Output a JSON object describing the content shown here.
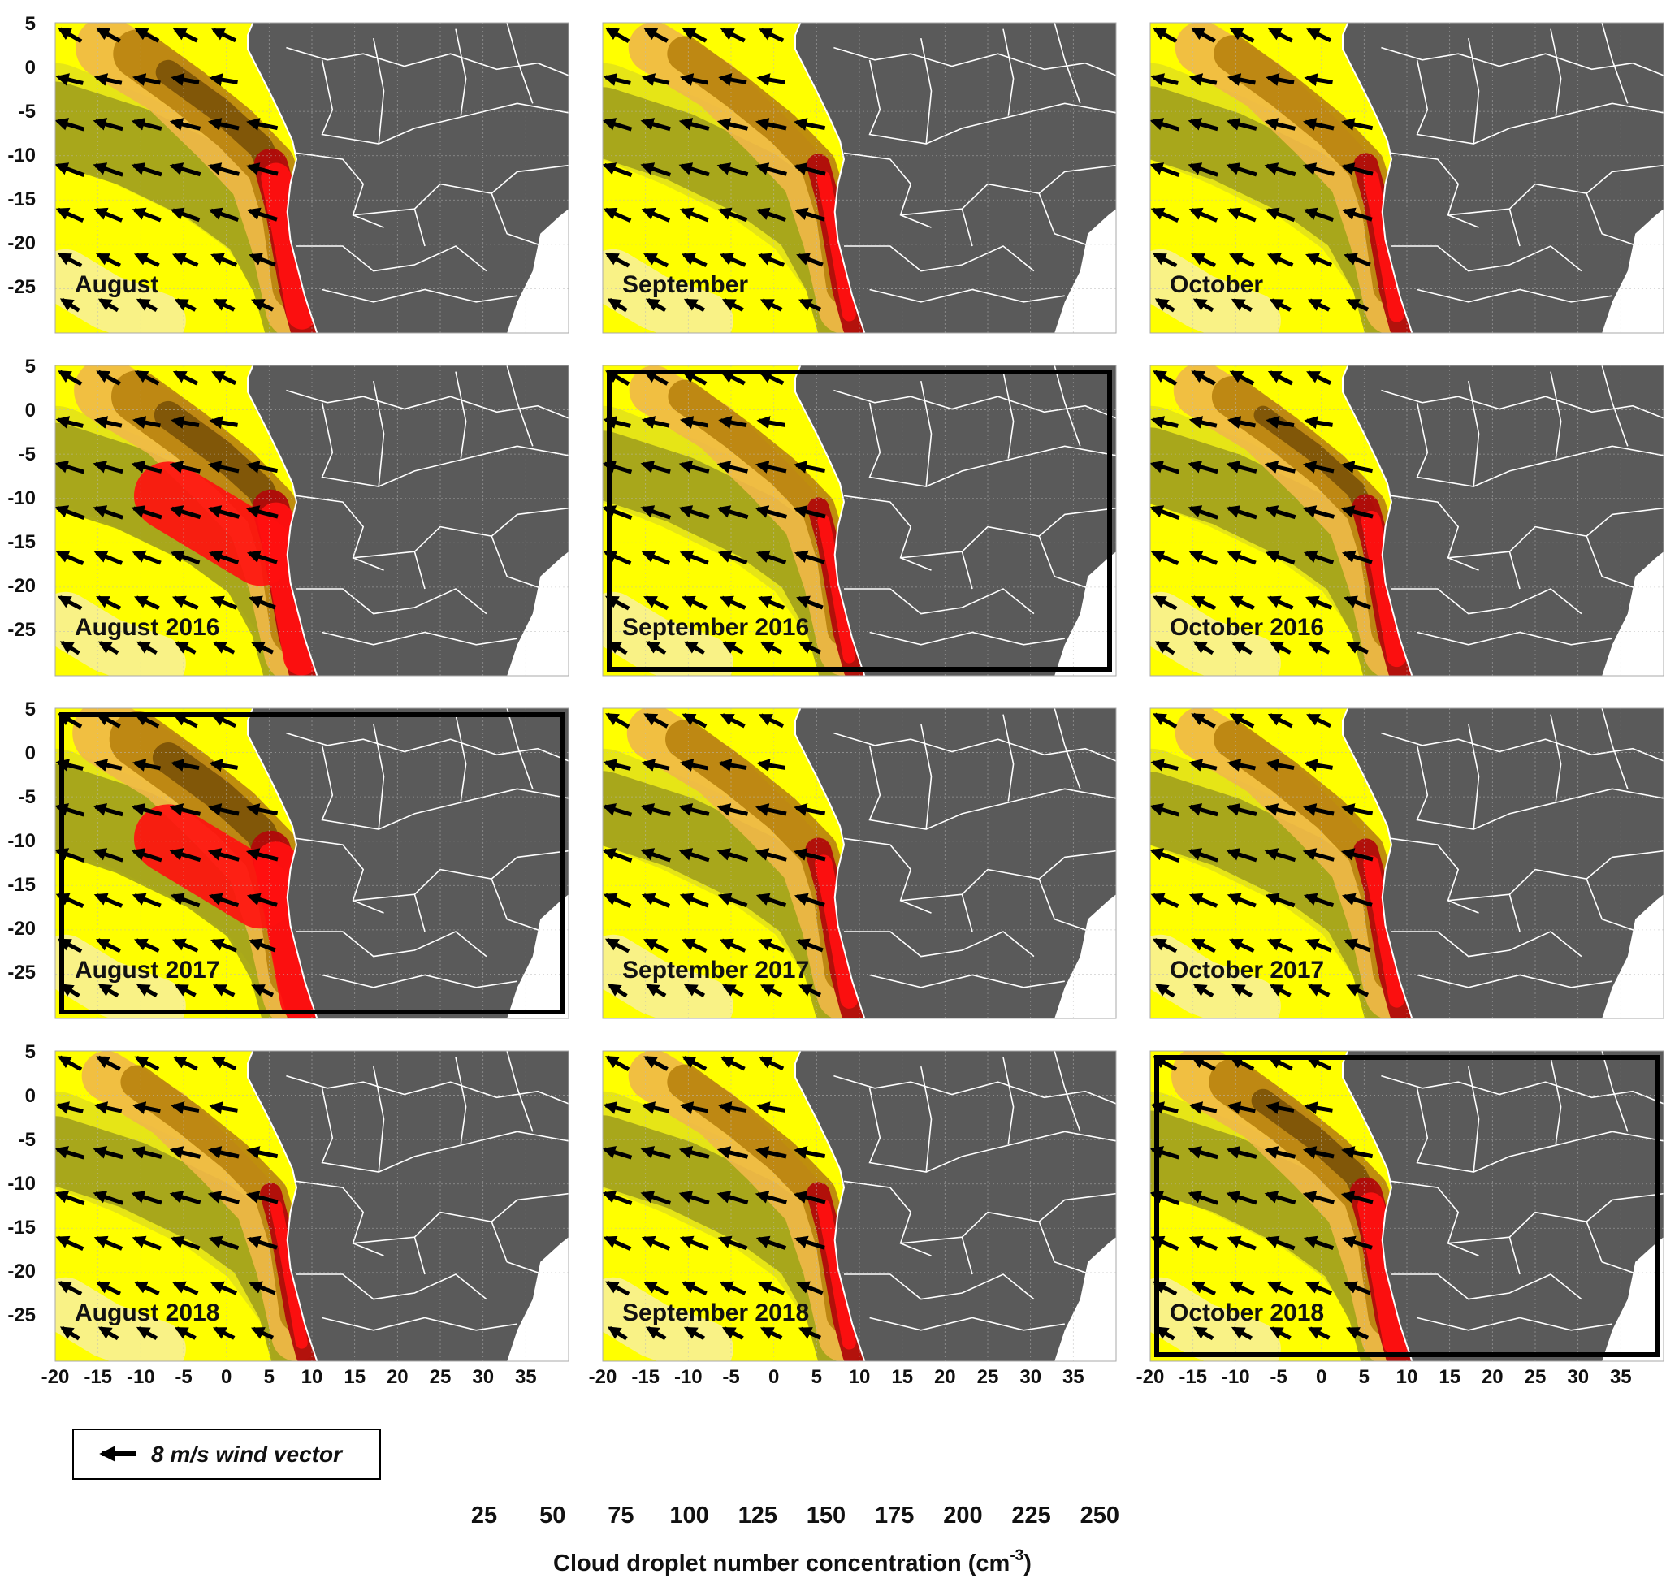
{
  "panels": [
    {
      "label": "August",
      "row": 0,
      "col": 0,
      "box": false,
      "intensity": 0.8
    },
    {
      "label": "September",
      "row": 0,
      "col": 1,
      "box": false,
      "intensity": 0.45
    },
    {
      "label": "October",
      "row": 0,
      "col": 2,
      "box": false,
      "intensity": 0.5
    },
    {
      "label": "August 2016",
      "row": 1,
      "col": 0,
      "box": false,
      "intensity": 0.9
    },
    {
      "label": "September 2016",
      "row": 1,
      "col": 1,
      "box": true,
      "intensity": 0.4
    },
    {
      "label": "October 2016",
      "row": 1,
      "col": 2,
      "box": false,
      "intensity": 0.6
    },
    {
      "label": "August 2017",
      "row": 2,
      "col": 0,
      "box": true,
      "intensity": 1.0
    },
    {
      "label": "September 2017",
      "row": 2,
      "col": 1,
      "box": false,
      "intensity": 0.55
    },
    {
      "label": "October 2017",
      "row": 2,
      "col": 2,
      "box": false,
      "intensity": 0.5
    },
    {
      "label": "August 2018",
      "row": 3,
      "col": 0,
      "box": false,
      "intensity": 0.4
    },
    {
      "label": "September 2018",
      "row": 3,
      "col": 1,
      "box": false,
      "intensity": 0.45
    },
    {
      "label": "October 2018",
      "row": 3,
      "col": 2,
      "box": true,
      "intensity": 0.75
    }
  ],
  "axes": {
    "y_ticks": [
      "5",
      "0",
      "-5",
      "-10",
      "-15",
      "-20",
      "-25"
    ],
    "x_ticks": [
      "-20",
      "-15",
      "-10",
      "-5",
      "0",
      "5",
      "10",
      "15",
      "20",
      "25",
      "30",
      "35"
    ],
    "lon_range": [
      -20,
      40
    ],
    "lat_range": [
      -30,
      5
    ]
  },
  "legend": {
    "wind_text": "8 m/s wind vector"
  },
  "colorbar": {
    "title_main": "Cloud droplet number concentration (cm",
    "title_sup": "-3",
    "title_close": ")",
    "ticks": [
      "25",
      "50",
      "75",
      "100",
      "125",
      "150",
      "175",
      "200",
      "225",
      "250"
    ],
    "colors": [
      "#f7ecbf",
      "#ffff00",
      "#e2e11a",
      "#9c9c1c",
      "#f0b848",
      "#b8820e",
      "#7a5208",
      "#6a0c0c",
      "#b00a0a",
      "#ff1010"
    ]
  },
  "colors": {
    "land": "#5a5a5a",
    "border": "#ffffff",
    "ocean_low": "#ffff00",
    "box": "#000000"
  }
}
